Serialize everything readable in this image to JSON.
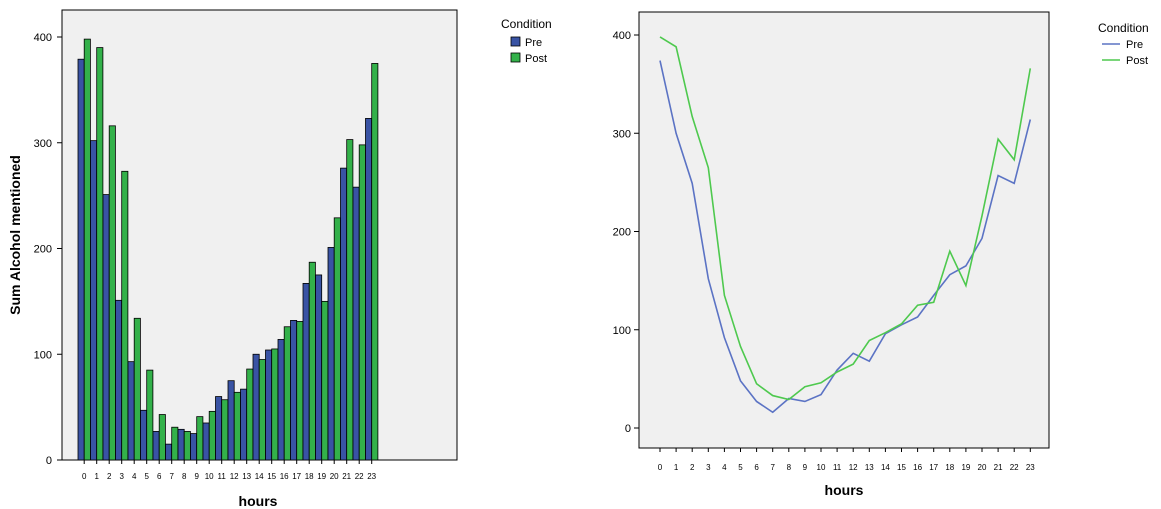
{
  "charts": [
    {
      "chart_data": {
        "type": "bar",
        "ylabel": "Sum Alcohol mentioned",
        "xlabel": "hours",
        "categories": [
          "0",
          "1",
          "2",
          "3",
          "4",
          "5",
          "6",
          "7",
          "8",
          "9",
          "10",
          "11",
          "12",
          "13",
          "14",
          "15",
          "16",
          "17",
          "18",
          "19",
          "20",
          "21",
          "22",
          "23"
        ],
        "ylim": [
          0,
          400
        ],
        "yticks": [
          0,
          100,
          200,
          300,
          400
        ],
        "legend_title": "Condition",
        "legend_position": "right",
        "grid": false,
        "series": [
          {
            "name": "Pre",
            "color": "#3953a4",
            "values": [
              379,
              302,
              251,
              151,
              93,
              47,
              27,
              15,
              29,
              25,
              35,
              60,
              75,
              67,
              100,
              104,
              114,
              132,
              167,
              175,
              201,
              276,
              258,
              323
            ]
          },
          {
            "name": "Post",
            "color": "#33b14a",
            "values": [
              398,
              390,
              316,
              273,
              134,
              85,
              43,
              31,
              27,
              41,
              46,
              57,
              64,
              86,
              95,
              105,
              126,
              131,
              187,
              150,
              229,
              303,
              298,
              375
            ]
          }
        ]
      }
    },
    {
      "chart_data": {
        "type": "line",
        "ylabel": "",
        "xlabel": "hours",
        "categories": [
          "0",
          "1",
          "2",
          "3",
          "4",
          "5",
          "6",
          "7",
          "8",
          "9",
          "10",
          "11",
          "12",
          "13",
          "14",
          "15",
          "16",
          "17",
          "18",
          "19",
          "20",
          "21",
          "22",
          "23"
        ],
        "ylim": [
          0,
          400
        ],
        "yticks": [
          0,
          100,
          200,
          300,
          400
        ],
        "ytick_labels": [
          "0",
          "100",
          "200",
          "300",
          "400"
        ],
        "legend_title": "Condition",
        "legend_position": "right",
        "grid": false,
        "series": [
          {
            "name": "Pre",
            "color": "#5b73c4",
            "values": [
              374,
              300,
              249,
              152,
              92,
              48,
              27,
              16,
              30,
              27,
              34,
              59,
              76,
              68,
              96,
              105,
              113,
              135,
              156,
              165,
              193,
              257,
              249,
              314
            ]
          },
          {
            "name": "Post",
            "color": "#4ec94e",
            "values": [
              398,
              388,
              317,
              265,
              135,
              83,
              45,
              33,
              29,
              42,
              46,
              57,
              65,
              89,
              97,
              106,
              125,
              128,
              180,
              145,
              216,
              294,
              273,
              366
            ]
          }
        ]
      }
    }
  ]
}
